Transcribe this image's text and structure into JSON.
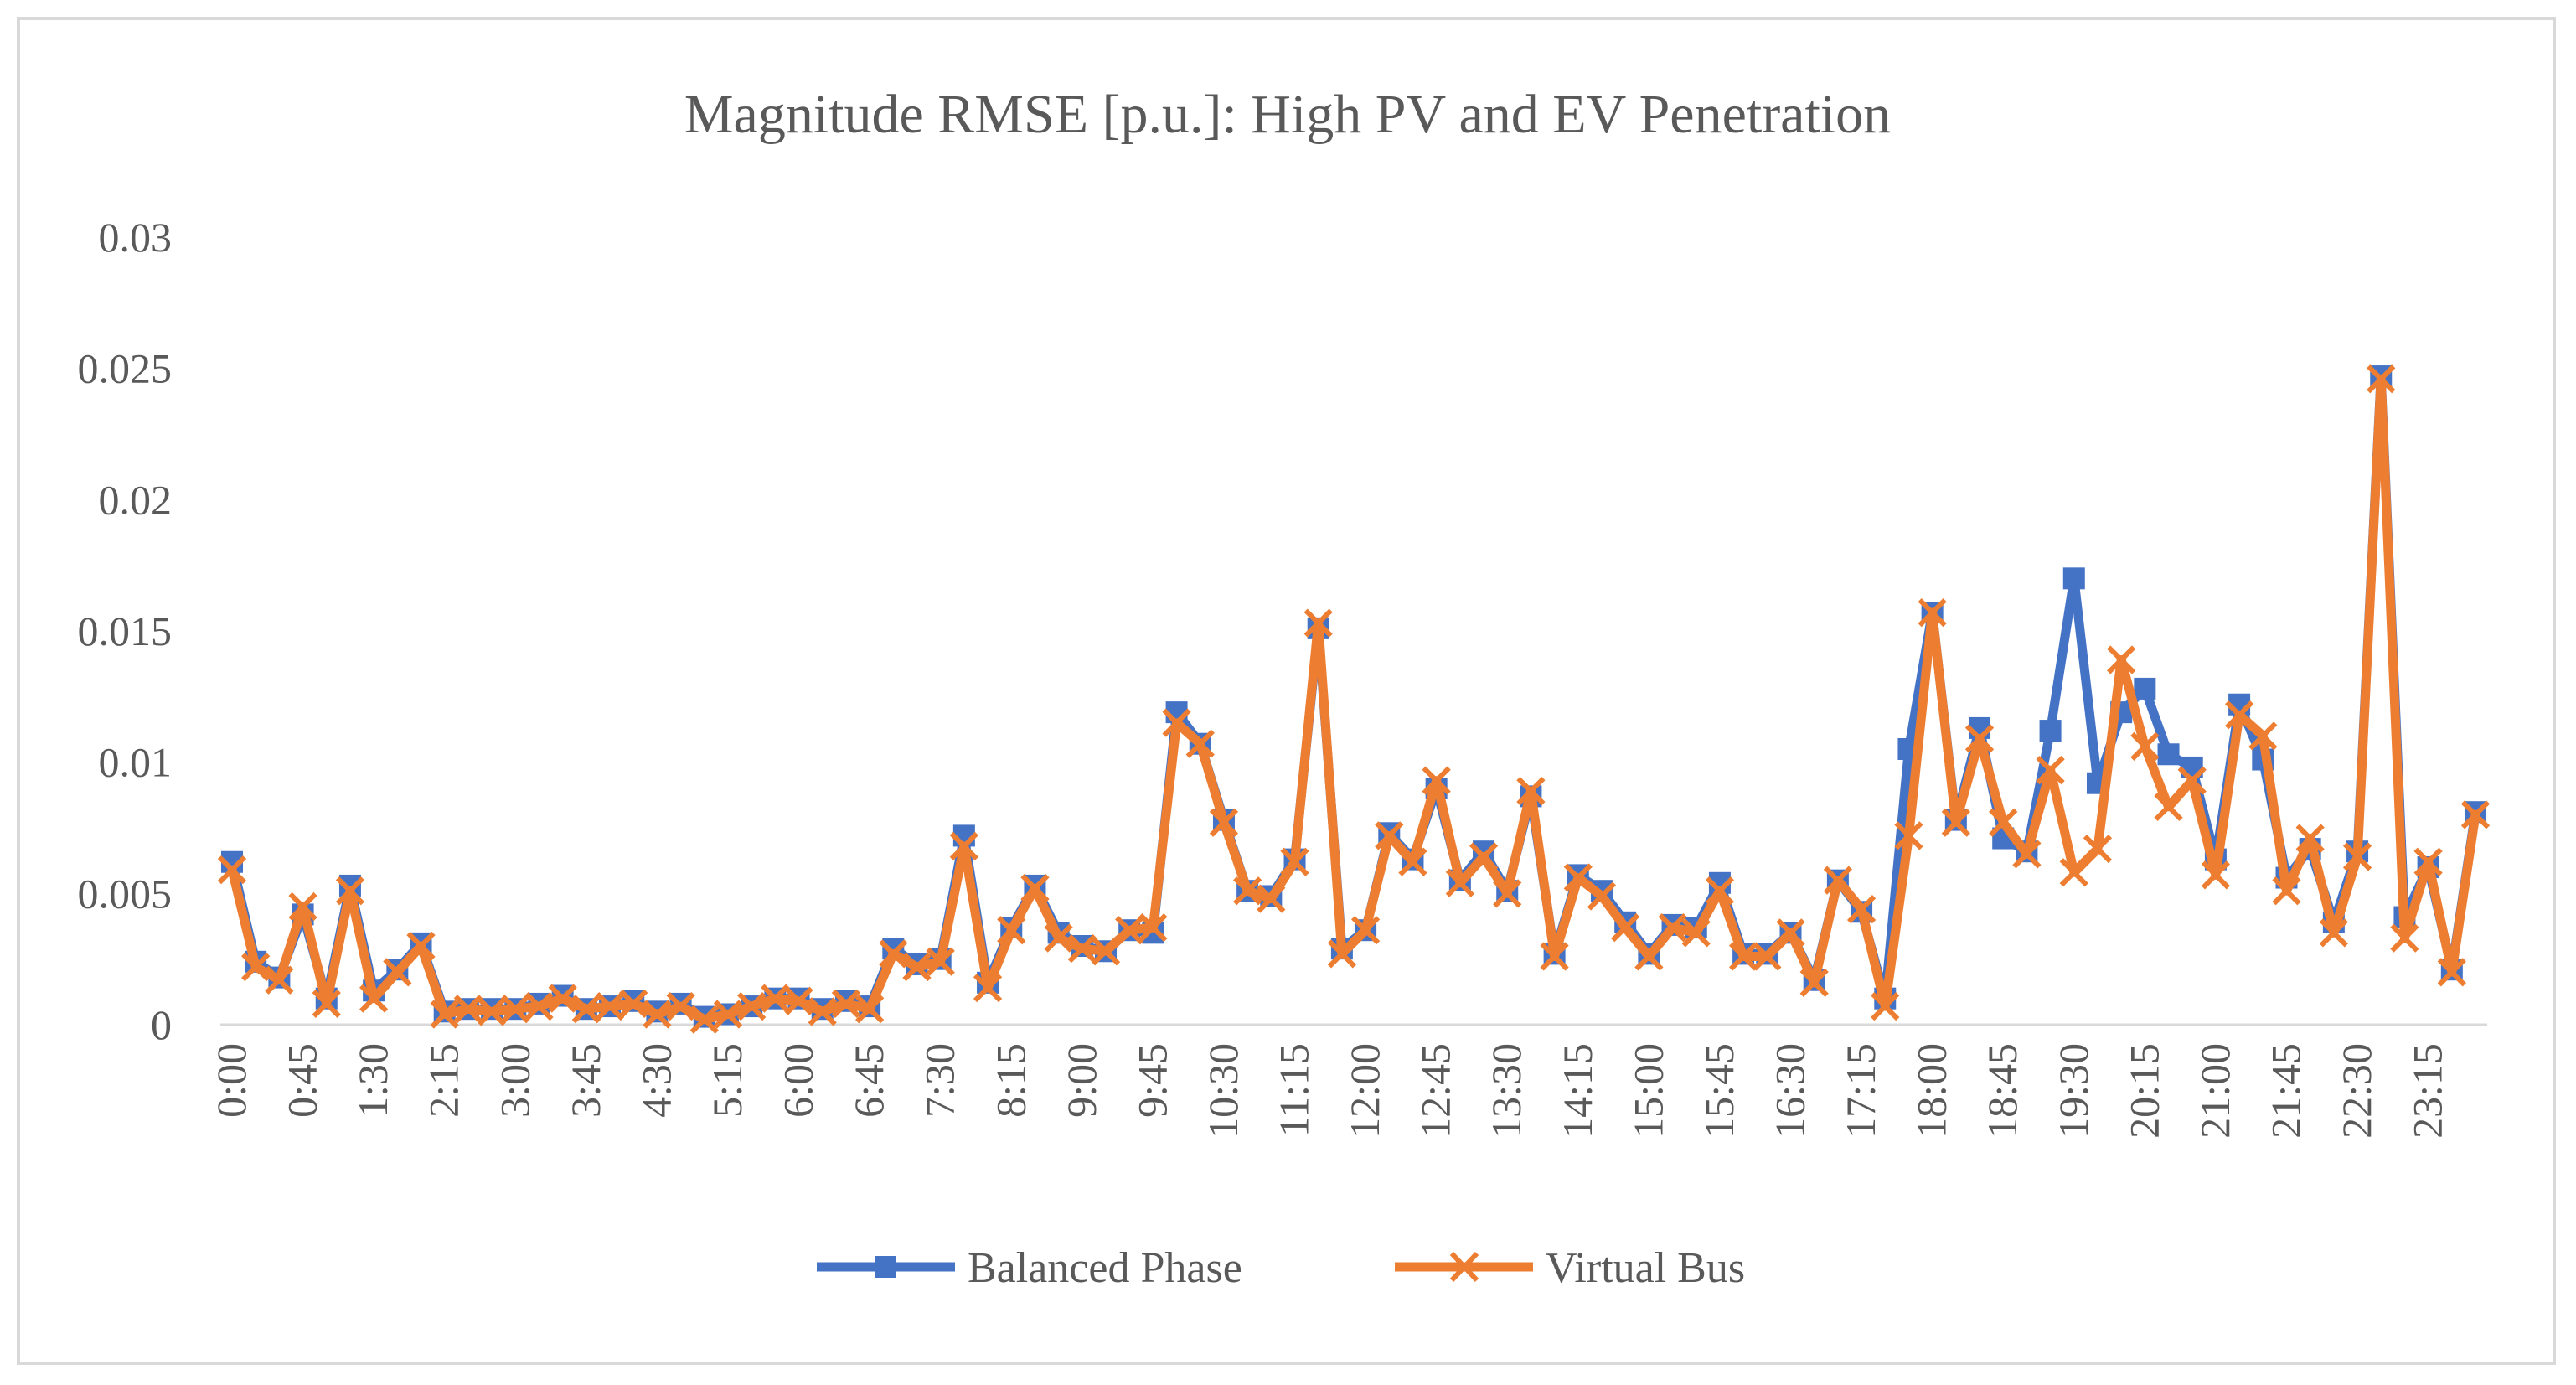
{
  "chart_data": {
    "type": "line",
    "title": "Magnitude RMSE [p.u.]: High PV and EV Penetration",
    "xlabel": "",
    "ylabel": "",
    "ylim": [
      0,
      0.03
    ],
    "y_ticks": [
      0,
      0.005,
      0.01,
      0.015,
      0.02,
      0.025,
      0.03
    ],
    "y_tick_labels": [
      "0",
      "0.005",
      "0.01",
      "0.015",
      "0.02",
      "0.025",
      "0.03"
    ],
    "gridlines": false,
    "legend_position": "bottom",
    "x_tick_labels": [
      "0:00",
      "0:45",
      "1:30",
      "2:15",
      "3:00",
      "3:45",
      "4:30",
      "5:15",
      "6:00",
      "6:45",
      "7:30",
      "8:15",
      "9:00",
      "9:45",
      "10:30",
      "11:15",
      "12:00",
      "12:45",
      "13:30",
      "14:15",
      "15:00",
      "15:45",
      "16:30",
      "17:15",
      "18:00",
      "18:45",
      "19:30",
      "20:15",
      "21:00",
      "21:45",
      "22:30",
      "23:15"
    ],
    "x_tick_every": 3,
    "categories": [
      "0:00",
      "0:15",
      "0:30",
      "0:45",
      "1:00",
      "1:15",
      "1:30",
      "1:45",
      "2:00",
      "2:15",
      "2:30",
      "2:45",
      "3:00",
      "3:15",
      "3:30",
      "3:45",
      "4:00",
      "4:15",
      "4:30",
      "4:45",
      "5:00",
      "5:15",
      "5:30",
      "5:45",
      "6:00",
      "6:15",
      "6:30",
      "6:45",
      "7:00",
      "7:15",
      "7:30",
      "7:45",
      "8:00",
      "8:15",
      "8:30",
      "8:45",
      "9:00",
      "9:15",
      "9:30",
      "9:45",
      "10:00",
      "10:15",
      "10:30",
      "10:45",
      "11:00",
      "11:15",
      "11:30",
      "11:45",
      "12:00",
      "12:15",
      "12:30",
      "12:45",
      "13:00",
      "13:15",
      "13:30",
      "13:45",
      "14:00",
      "14:15",
      "14:30",
      "14:45",
      "15:00",
      "15:15",
      "15:30",
      "15:45",
      "16:00",
      "16:15",
      "16:30",
      "16:45",
      "17:00",
      "17:15",
      "17:30",
      "17:45",
      "18:00",
      "18:15",
      "18:30",
      "18:45",
      "19:00",
      "19:15",
      "19:30",
      "19:45",
      "20:00",
      "20:15",
      "20:30",
      "20:45",
      "21:00",
      "21:15",
      "21:30",
      "21:45",
      "22:00",
      "22:15",
      "22:30",
      "22:45",
      "23:00",
      "23:15",
      "23:30",
      "23:45"
    ],
    "series": [
      {
        "name": "Balanced Phase",
        "color": "#4472c4",
        "marker": "square",
        "values": [
          0.0062,
          0.0024,
          0.0018,
          0.0042,
          0.001,
          0.0053,
          0.0013,
          0.0021,
          0.0031,
          0.0005,
          0.0006,
          0.0006,
          0.0006,
          0.0008,
          0.0011,
          0.0006,
          0.0007,
          0.0009,
          0.0005,
          0.0008,
          0.0003,
          0.0004,
          0.0007,
          0.001,
          0.001,
          0.0006,
          0.0009,
          0.0007,
          0.0029,
          0.0023,
          0.0025,
          0.0072,
          0.0016,
          0.0037,
          0.0053,
          0.0035,
          0.003,
          0.0028,
          0.0036,
          0.0035,
          0.0119,
          0.0107,
          0.0078,
          0.0051,
          0.0049,
          0.0063,
          0.0151,
          0.0029,
          0.0036,
          0.0073,
          0.0063,
          0.009,
          0.0055,
          0.0066,
          0.0051,
          0.0087,
          0.0027,
          0.0057,
          0.0051,
          0.0039,
          0.0027,
          0.0038,
          0.0037,
          0.0054,
          0.0027,
          0.0027,
          0.0035,
          0.0017,
          0.0055,
          0.0043,
          0.001,
          0.0105,
          0.0157,
          0.0078,
          0.0113,
          0.0071,
          0.0066,
          0.0112,
          0.017,
          0.0092,
          0.0119,
          0.0128,
          0.0103,
          0.0098,
          0.0063,
          0.0122,
          0.0101,
          0.0056,
          0.0067,
          0.0039,
          0.0066,
          0.0247,
          0.0041,
          0.006,
          0.0021,
          0.0081
        ]
      },
      {
        "name": "Virtual Bus",
        "color": "#ed7d31",
        "marker": "x",
        "values": [
          0.0059,
          0.0022,
          0.0017,
          0.0045,
          0.0008,
          0.0051,
          0.001,
          0.002,
          0.003,
          0.0004,
          0.0006,
          0.0005,
          0.0006,
          0.0007,
          0.001,
          0.0006,
          0.0007,
          0.0008,
          0.0004,
          0.0007,
          0.0002,
          0.0004,
          0.0007,
          0.001,
          0.0009,
          0.0005,
          0.0008,
          0.0006,
          0.0027,
          0.0022,
          0.0024,
          0.0068,
          0.0014,
          0.0036,
          0.0052,
          0.0033,
          0.0029,
          0.0028,
          0.0036,
          0.0037,
          0.0115,
          0.0107,
          0.0077,
          0.0051,
          0.0048,
          0.0062,
          0.0153,
          0.0027,
          0.0036,
          0.0072,
          0.0062,
          0.0093,
          0.0054,
          0.0064,
          0.005,
          0.0089,
          0.0026,
          0.0056,
          0.0049,
          0.0037,
          0.0026,
          0.0037,
          0.0035,
          0.0051,
          0.0026,
          0.0026,
          0.0035,
          0.0016,
          0.0055,
          0.0044,
          0.0007,
          0.0072,
          0.0157,
          0.0077,
          0.0109,
          0.0077,
          0.0065,
          0.0097,
          0.0058,
          0.0067,
          0.0139,
          0.0106,
          0.0083,
          0.0093,
          0.0057,
          0.0118,
          0.011,
          0.0051,
          0.0071,
          0.0035,
          0.0064,
          0.0246,
          0.0033,
          0.0062,
          0.002,
          0.008
        ]
      }
    ]
  }
}
